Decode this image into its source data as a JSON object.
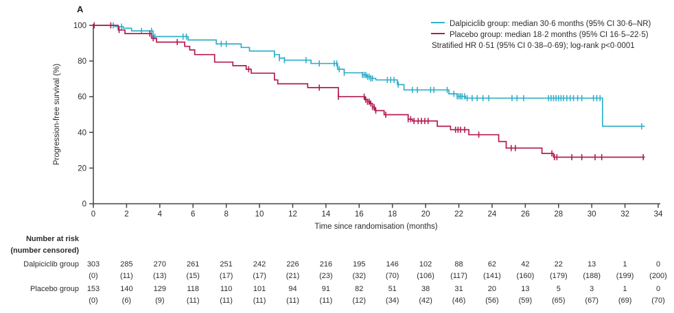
{
  "panel_label": "A",
  "colors": {
    "dalpiciclib": "#2fafc9",
    "placebo": "#b21a52",
    "axis": "#414042",
    "text": "#2d2a2b"
  },
  "legend": {
    "items": [
      {
        "label": "Dalpiciclib group: median 30·6 months (95% CI 30·6–NR)",
        "color_key": "dalpiciclib"
      },
      {
        "label": "Placebo group: median 18·2 months (95% CI 16·5–22·5)",
        "color_key": "placebo"
      }
    ],
    "note": "Stratified HR 0·51 (95% CI 0·38–0·69); log-rank p<0·0001"
  },
  "chart_data": {
    "type": "line",
    "subtype": "kaplan-meier-step",
    "title": "",
    "xlabel": "Time since randomisation (months)",
    "ylabel": "Progression-free survival (%)",
    "xlim": [
      0,
      34
    ],
    "ylim": [
      0,
      100
    ],
    "x_ticks": [
      0,
      2,
      4,
      6,
      8,
      10,
      12,
      14,
      16,
      18,
      20,
      22,
      24,
      26,
      28,
      30,
      32,
      34
    ],
    "y_ticks": [
      0,
      20,
      40,
      60,
      80,
      100
    ],
    "grid": false,
    "legend_position": "top-right",
    "series": [
      {
        "name": "Dalpiciclib group",
        "color": "#2fafc9",
        "median_months": "30·6",
        "median_ci": "30·6–NR",
        "steps": [
          [
            0,
            100
          ],
          [
            1.3,
            99.3
          ],
          [
            1.8,
            98.4
          ],
          [
            2.3,
            96.9
          ],
          [
            3.6,
            93.7
          ],
          [
            5.7,
            91.8
          ],
          [
            7.4,
            89.6
          ],
          [
            8.9,
            87.6
          ],
          [
            9.4,
            85.6
          ],
          [
            10.9,
            83.6
          ],
          [
            11.2,
            81.6
          ],
          [
            11.5,
            80.5
          ],
          [
            13.1,
            78.6
          ],
          [
            14.7,
            75.4
          ],
          [
            15.1,
            73.4
          ],
          [
            16.2,
            72.2
          ],
          [
            16.45,
            71.2
          ],
          [
            16.7,
            70.3
          ],
          [
            17.0,
            69.4
          ],
          [
            18.3,
            66.8
          ],
          [
            18.7,
            63.8
          ],
          [
            21.4,
            61.6
          ],
          [
            21.9,
            60.2
          ],
          [
            22.4,
            59.2
          ],
          [
            30.65,
            43.4
          ],
          [
            33.2,
            43.4
          ]
        ],
        "censor_marks": [
          1.2,
          1.7,
          2.9,
          3.5,
          3.7,
          5.4,
          5.6,
          7.7,
          8.0,
          10.9,
          11.2,
          11.5,
          12.8,
          13.6,
          14.5,
          14.65,
          14.8,
          15.1,
          16.2,
          16.3,
          16.4,
          16.5,
          16.6,
          16.7,
          16.8,
          17.7,
          17.9,
          18.1,
          18.35,
          19.2,
          19.5,
          20.3,
          20.5,
          21.3,
          21.7,
          21.9,
          22.0,
          22.1,
          22.2,
          22.35,
          22.5,
          22.8,
          23.1,
          23.45,
          23.8,
          25.2,
          25.5,
          25.9,
          27.4,
          27.55,
          27.7,
          27.85,
          28.0,
          28.15,
          28.3,
          28.5,
          28.7,
          28.9,
          29.15,
          29.4,
          30.1,
          30.3,
          30.5,
          33.0
        ]
      },
      {
        "name": "Placebo group",
        "color": "#b21a52",
        "median_months": "18·2",
        "median_ci": "16·5–22·5",
        "steps": [
          [
            0,
            100
          ],
          [
            1.5,
            97.4
          ],
          [
            1.9,
            95.4
          ],
          [
            3.5,
            92.8
          ],
          [
            3.8,
            90.6
          ],
          [
            5.5,
            88.2
          ],
          [
            5.8,
            86.2
          ],
          [
            6.1,
            83.6
          ],
          [
            7.3,
            79.4
          ],
          [
            8.4,
            77.4
          ],
          [
            9.2,
            75.4
          ],
          [
            9.5,
            73.2
          ],
          [
            10.9,
            69.4
          ],
          [
            11.1,
            67.2
          ],
          [
            12.9,
            65.1
          ],
          [
            14.75,
            60.0
          ],
          [
            16.35,
            58.3
          ],
          [
            16.5,
            57.2
          ],
          [
            16.65,
            56.2
          ],
          [
            16.8,
            54.2
          ],
          [
            16.95,
            52.2
          ],
          [
            17.5,
            49.9
          ],
          [
            18.95,
            47.4
          ],
          [
            19.2,
            46.4
          ],
          [
            20.7,
            43.4
          ],
          [
            21.5,
            41.5
          ],
          [
            22.6,
            38.7
          ],
          [
            24.4,
            34.9
          ],
          [
            24.85,
            31.2
          ],
          [
            27.0,
            28.2
          ],
          [
            27.7,
            26.1
          ],
          [
            33.2,
            26.1
          ]
        ],
        "censor_marks": [
          0.05,
          1.05,
          1.55,
          3.4,
          3.6,
          5.05,
          9.35,
          13.6,
          14.75,
          16.3,
          16.4,
          16.5,
          16.6,
          16.7,
          16.8,
          16.9,
          17.0,
          17.6,
          18.95,
          19.1,
          19.3,
          19.55,
          19.75,
          19.95,
          20.15,
          21.8,
          21.95,
          22.1,
          22.35,
          23.2,
          25.15,
          25.4,
          27.6,
          27.75,
          27.9,
          28.8,
          29.4,
          30.2,
          30.6,
          33.1
        ]
      }
    ]
  },
  "number_at_risk": {
    "header_line1": "Number at risk",
    "header_line2": "(number censored)",
    "time_points": [
      0,
      2,
      4,
      6,
      8,
      10,
      12,
      14,
      16,
      18,
      20,
      22,
      24,
      26,
      28,
      30,
      32,
      34
    ],
    "rows": [
      {
        "label": "Dalpiciclib group",
        "at_risk": [
          303,
          285,
          270,
          261,
          251,
          242,
          226,
          216,
          195,
          146,
          102,
          88,
          62,
          42,
          22,
          13,
          1,
          0
        ],
        "censored": [
          "(0)",
          "(11)",
          "(13)",
          "(15)",
          "(17)",
          "(17)",
          "(21)",
          "(23)",
          "(32)",
          "(70)",
          "(106)",
          "(117)",
          "(141)",
          "(160)",
          "(179)",
          "(188)",
          "(199)",
          "(200)"
        ]
      },
      {
        "label": "Placebo group",
        "at_risk": [
          153,
          140,
          129,
          118,
          110,
          101,
          94,
          91,
          82,
          51,
          38,
          31,
          20,
          13,
          5,
          3,
          1,
          0
        ],
        "censored": [
          "(0)",
          "(6)",
          "(9)",
          "(11)",
          "(11)",
          "(11)",
          "(11)",
          "(11)",
          "(12)",
          "(34)",
          "(42)",
          "(46)",
          "(56)",
          "(59)",
          "(65)",
          "(67)",
          "(69)",
          "(70)"
        ]
      }
    ]
  }
}
